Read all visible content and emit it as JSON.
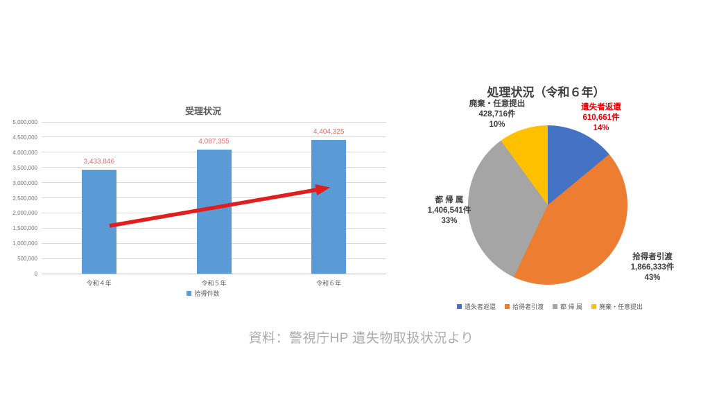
{
  "slide": {
    "caption": "資料：警視庁HP 遺失物取扱状況より"
  },
  "chart_data": [
    {
      "type": "bar",
      "title": "受理状況",
      "categories": [
        "令和４年",
        "令和５年",
        "令和６年"
      ],
      "series": [
        {
          "name": "拾得件数",
          "values": [
            3433846,
            4087355,
            4404325
          ]
        }
      ],
      "value_labels": [
        "3,433,846",
        "4,087,355",
        "4,404,325"
      ],
      "ylim": [
        0,
        5000000
      ],
      "ytick_step": 500000,
      "ytick_labels": [
        "0",
        "500,000",
        "1,000,000",
        "1,500,000",
        "2,000,000",
        "2,500,000",
        "3,000,000",
        "3,500,000",
        "4,000,000",
        "4,500,000",
        "5,000,000"
      ],
      "grid": true,
      "legend_position": "bottom",
      "colors": {
        "bar": "#5B9BD5",
        "value_label": "#DF6E6E",
        "axis_text": "#737373",
        "gridline": "#D9D9D9",
        "title": "#595959"
      },
      "annotation": {
        "type": "arrow",
        "color": "#E11D1D",
        "description": "red upward trend arrow from 令和４年 bar to 令和６年 bar"
      }
    },
    {
      "type": "pie",
      "title": "処理状況（令和６年）",
      "start_angle_deg": 0,
      "direction": "clockwise",
      "legend_position": "bottom",
      "slices": [
        {
          "label": "遺失者返還",
          "count_label": "610,661件",
          "pct_label": "14%",
          "value": 610661,
          "pct": 14,
          "color": "#4472C4",
          "label_text_color": "#E90000"
        },
        {
          "label": "拾得者引渡",
          "count_label": "1,866,333件",
          "pct_label": "43%",
          "value": 1866333,
          "pct": 43,
          "color": "#ED7D31",
          "label_text_color": "#3F3F3F"
        },
        {
          "label": "都 帰 属",
          "count_label": "1,406,541件",
          "pct_label": "33%",
          "value": 1406541,
          "pct": 33,
          "color": "#A5A5A5",
          "label_text_color": "#3F3F3F"
        },
        {
          "label": "廃棄・任意提出",
          "count_label": "428,716件",
          "pct_label": "10%",
          "value": 428716,
          "pct": 10,
          "color": "#FFC000",
          "label_text_color": "#3F3F3F"
        }
      ]
    }
  ]
}
